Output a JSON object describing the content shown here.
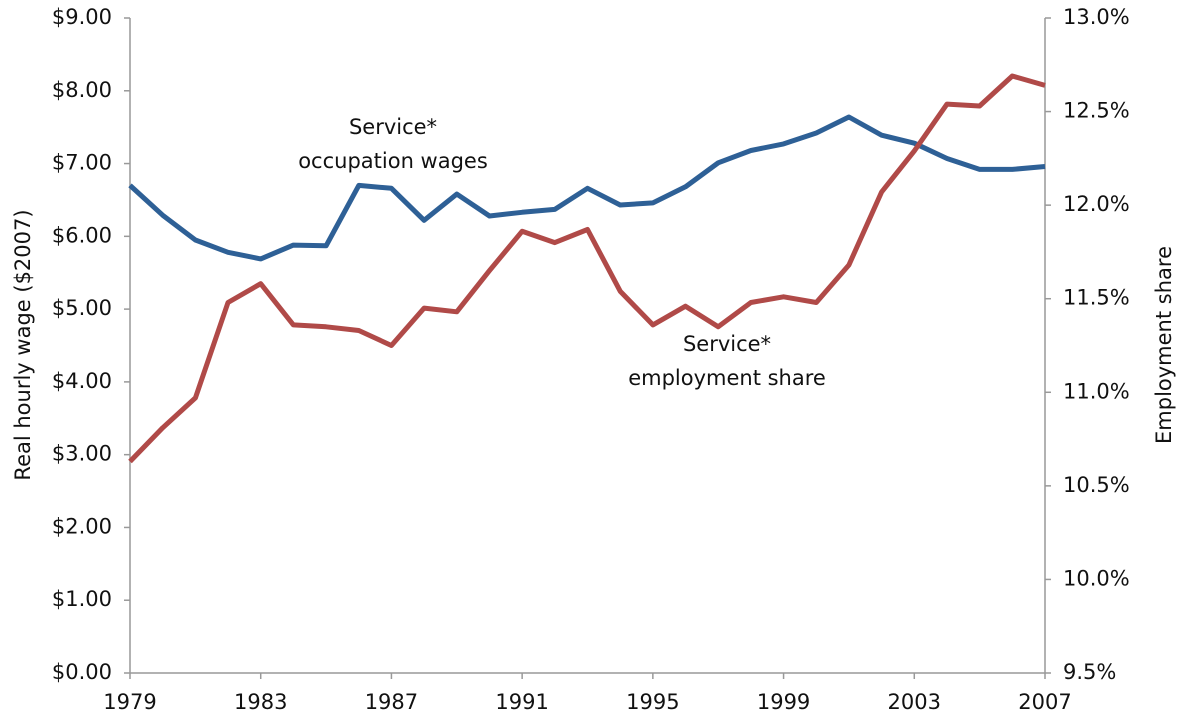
{
  "chart_data": {
    "type": "line",
    "y_label": "Real hourly wage ($2007)",
    "y2_label": "Employment share",
    "x": [
      1979,
      1980,
      1981,
      1982,
      1983,
      1984,
      1985,
      1986,
      1987,
      1988,
      1989,
      1990,
      1991,
      1992,
      1993,
      1994,
      1995,
      1996,
      1997,
      1998,
      1999,
      2000,
      2001,
      2002,
      2003,
      2004,
      2005,
      2006,
      2007
    ],
    "series": [
      {
        "name": "Service* occupation wages",
        "color": "#2e6096",
        "values": [
          6.7,
          6.29,
          5.95,
          5.78,
          5.69,
          5.88,
          5.87,
          6.7,
          6.66,
          6.22,
          6.58,
          6.28,
          6.33,
          6.37,
          6.66,
          6.43,
          6.46,
          6.68,
          7.01,
          7.18,
          7.27,
          7.42,
          7.64,
          7.39,
          7.28,
          7.07,
          6.92,
          6.92,
          6.96
        ]
      },
      {
        "name": "Service* employment share",
        "color": "#b04a48",
        "axis": "y2",
        "values": [
          10.63,
          10.81,
          10.97,
          11.48,
          11.58,
          11.36,
          11.35,
          11.33,
          11.25,
          11.45,
          11.43,
          11.65,
          11.86,
          11.8,
          11.87,
          11.54,
          11.36,
          11.46,
          11.35,
          11.48,
          11.51,
          11.48,
          11.68,
          12.07,
          12.29,
          12.54,
          12.53,
          12.69,
          12.64
        ]
      }
    ],
    "annotations": [
      [
        "Service*",
        "occupation wages"
      ],
      [
        "Service*",
        "employment share"
      ]
    ],
    "xlim": [
      1979,
      2007
    ],
    "xticks": [
      1979,
      1983,
      1987,
      1991,
      1995,
      1999,
      2003,
      2007
    ],
    "ylim": [
      0,
      9
    ],
    "yticks": [
      {
        "value": 0,
        "label": "$0.00"
      },
      {
        "value": 1,
        "label": "$1.00"
      },
      {
        "value": 2,
        "label": "$2.00"
      },
      {
        "value": 3,
        "label": "$3.00"
      },
      {
        "value": 4,
        "label": "$4.00"
      },
      {
        "value": 5,
        "label": "$5.00"
      },
      {
        "value": 6,
        "label": "$6.00"
      },
      {
        "value": 7,
        "label": "$7.00"
      },
      {
        "value": 8,
        "label": "$8.00"
      },
      {
        "value": 9,
        "label": "$9.00"
      }
    ],
    "y2lim": [
      9.5,
      13
    ],
    "y2ticks": [
      {
        "value": 9.5,
        "label": "9.5%"
      },
      {
        "value": 10,
        "label": "10.0%"
      },
      {
        "value": 10.5,
        "label": "10.5%"
      },
      {
        "value": 11,
        "label": "11.0%"
      },
      {
        "value": 11.5,
        "label": "11.5%"
      },
      {
        "value": 12,
        "label": "12.0%"
      },
      {
        "value": 12.5,
        "label": "12.5%"
      },
      {
        "value": 13,
        "label": "13.0%"
      }
    ],
    "grid": false
  }
}
